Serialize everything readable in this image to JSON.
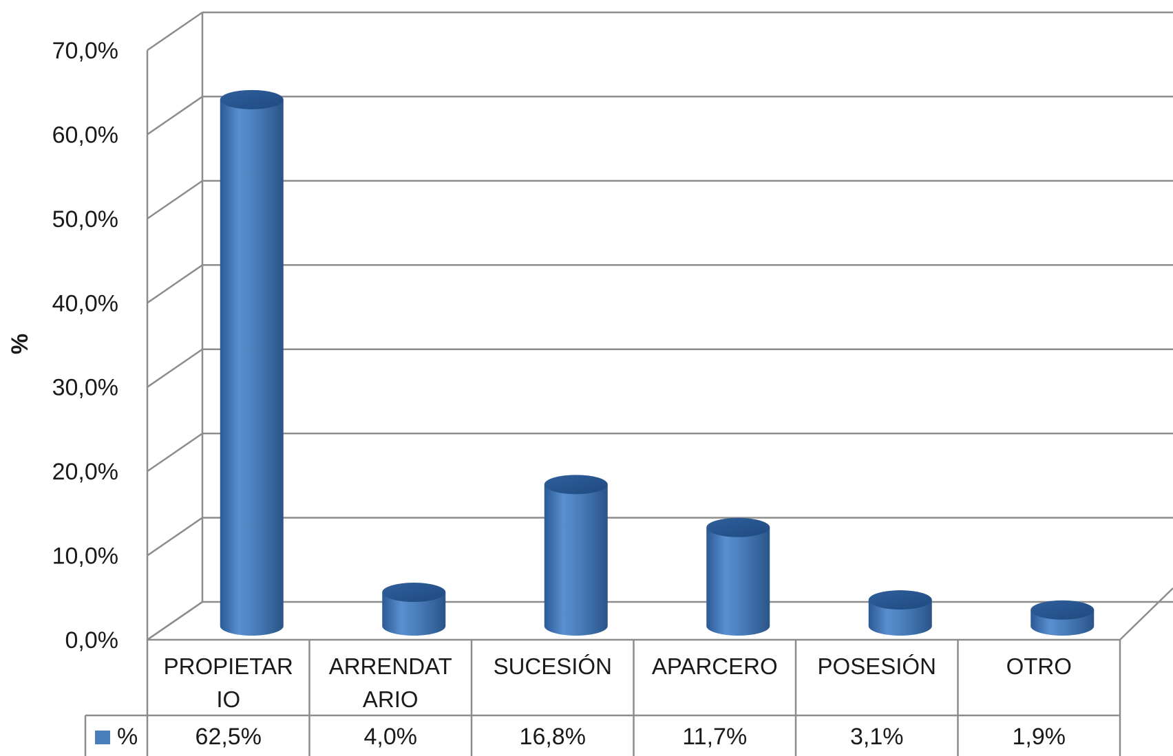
{
  "chart_data": {
    "type": "bar",
    "style": "3d-cylinder",
    "categories": [
      [
        "PROPIETAR",
        "IO"
      ],
      [
        "ARRENDAT",
        "ARIO"
      ],
      [
        "SUCESIÓN"
      ],
      [
        "APARCERO"
      ],
      [
        "POSESIÓN"
      ],
      [
        "OTRO"
      ]
    ],
    "series": [
      {
        "name": "%",
        "color": "#4a7ebb",
        "values": [
          62.5,
          4.0,
          16.8,
          11.7,
          3.1,
          1.9
        ],
        "labels": [
          "62,5%",
          "4,0%",
          "16,8%",
          "11,7%",
          "3,1%",
          "1,9%"
        ]
      }
    ],
    "ylabel": "%",
    "ylim": [
      0,
      70
    ],
    "yticks": [
      0,
      10,
      20,
      30,
      40,
      50,
      60,
      70
    ],
    "ytick_labels": [
      "0,0%",
      "10,0%",
      "20,0%",
      "30,0%",
      "40,0%",
      "50,0%",
      "60,0%",
      "70,0%"
    ],
    "grid": true,
    "data_table": true
  }
}
